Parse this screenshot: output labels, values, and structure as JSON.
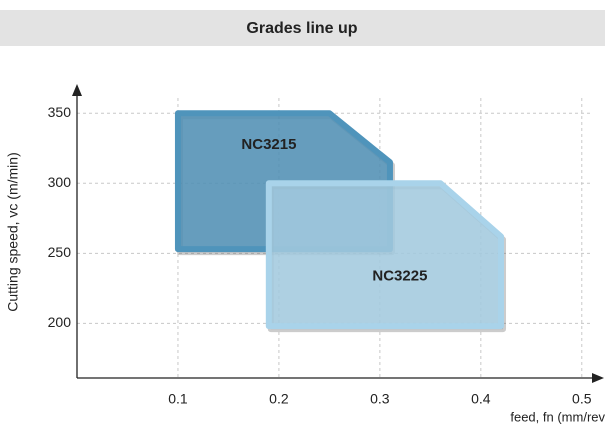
{
  "chart_data": {
    "type": "area-map",
    "title": "Grades line up",
    "xlabel": "feed, fn (mm/rev",
    "ylabel": "Cutting speed, vc (m/min)",
    "xlim": [
      0,
      0.523
    ],
    "ylim": [
      161,
      368
    ],
    "xticks": [
      0.1,
      0.2,
      0.3,
      0.4,
      0.5
    ],
    "yticks": [
      200,
      250,
      300,
      350
    ],
    "grid": true,
    "series": [
      {
        "name": "NC3215",
        "color": "#4f94bb",
        "x": [
          0.1,
          0.25,
          0.31,
          0.31,
          0.1
        ],
        "y": [
          350,
          350,
          315,
          253,
          253
        ]
      },
      {
        "name": "NC3225",
        "color": "#a9d3ea",
        "x": [
          0.19,
          0.36,
          0.42,
          0.42,
          0.19
        ],
        "y": [
          300,
          300,
          262,
          198,
          198
        ]
      }
    ]
  }
}
